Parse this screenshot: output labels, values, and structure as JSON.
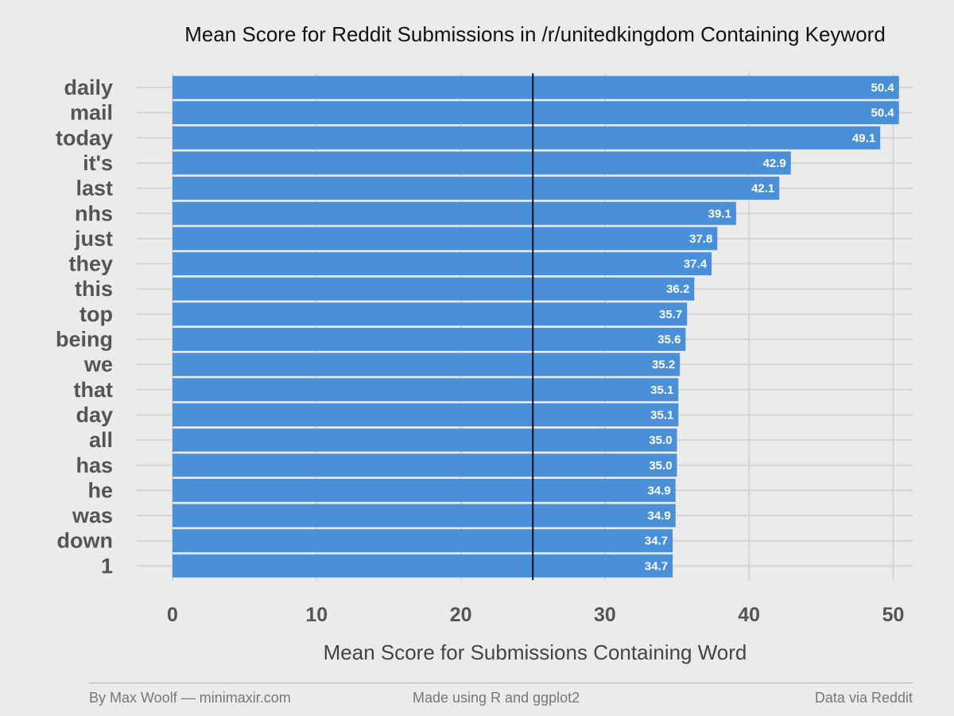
{
  "chart_data": {
    "type": "bar",
    "orientation": "horizontal",
    "title": "Mean Score for Reddit Submissions in /r/unitedkingdom Containing Keyword",
    "xlabel": "Mean Score for Submissions Containing Word",
    "ylabel": "",
    "categories": [
      "daily",
      "mail",
      "today",
      "it's",
      "last",
      "nhs",
      "just",
      "they",
      "this",
      "top",
      "being",
      "we",
      "that",
      "day",
      "all",
      "has",
      "he",
      "was",
      "down",
      "1"
    ],
    "values": [
      50.4,
      50.4,
      49.1,
      42.9,
      42.1,
      39.1,
      37.8,
      37.4,
      36.2,
      35.7,
      35.6,
      35.2,
      35.1,
      35.1,
      35.0,
      35.0,
      34.9,
      34.9,
      34.7,
      34.7
    ],
    "data_labels": [
      "50.4",
      "50.4",
      "49.1",
      "42.9",
      "42.1",
      "39.1",
      "37.8",
      "37.4",
      "36.2",
      "35.7",
      "35.6",
      "35.2",
      "35.1",
      "35.1",
      "35.0",
      "35.0",
      "34.9",
      "34.9",
      "34.7",
      "34.7"
    ],
    "xticks": [
      0,
      10,
      20,
      30,
      40,
      50
    ],
    "xlim": [
      0,
      51
    ],
    "reference_line": 25,
    "grid": true,
    "legend": "none",
    "colors": {
      "bar": "#4a90d9",
      "background": "#ebebeb",
      "grid": "#d4d4d4",
      "reference_line": "#111111"
    }
  },
  "footer": {
    "left": "By Max Woolf — minimaxir.com",
    "center": "Made using R and ggplot2",
    "right": "Data via Reddit"
  }
}
